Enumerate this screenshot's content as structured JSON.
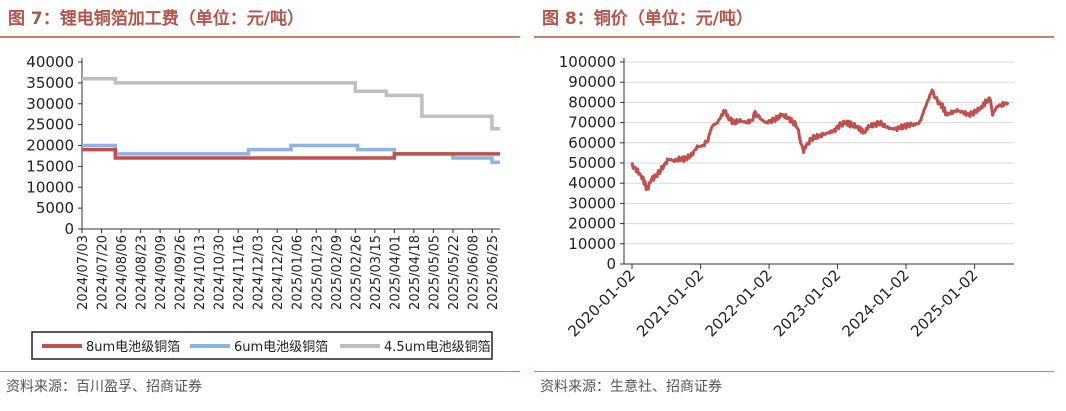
{
  "figures": [
    {
      "title": "图 7：锂电铜箔加工费（单位：元/吨）",
      "source": "资料来源：百川盈孚、招商证券"
    },
    {
      "title": "图 8：铜价（单位：元/吨）",
      "source": "资料来源：生意社、招商证券"
    }
  ],
  "colors": {
    "red": "#c0504d",
    "blue": "#8db4e2",
    "gray": "#bfbfbf",
    "accent": "#b3554b"
  },
  "chart_data": [
    {
      "type": "line",
      "title": "锂电铜箔加工费（单位：元/吨）",
      "categories": [
        "2024/07/03",
        "2024/07/20",
        "2024/08/06",
        "2024/08/23",
        "2024/09/09",
        "2024/09/26",
        "2024/10/13",
        "2024/10/30",
        "2024/11/16",
        "2024/12/03",
        "2024/12/20",
        "2025/01/06",
        "2025/01/23",
        "2025/02/09",
        "2025/02/26",
        "2025/03/15",
        "2025/04/01",
        "2025/04/18",
        "2025/05/05",
        "2025/05/22",
        "2025/06/08",
        "2025/06/25"
      ],
      "ylim": [
        0,
        40000
      ],
      "yticks": [
        "40000",
        "35000",
        "30000",
        "25000",
        "20000",
        "15000",
        "10000",
        "5000",
        "0"
      ],
      "legend_position": "bottom",
      "series": [
        {
          "name": "8um电池级铜箔",
          "color": "#c0504d",
          "x": [
            "2024/07/03",
            "2024/07/20",
            "2024/08/01",
            "2024/11/25",
            "2025/04/01",
            "2025/05/10",
            "2025/07/02"
          ],
          "y": [
            19000,
            19000,
            17000,
            17000,
            18000,
            18000,
            18000
          ]
        },
        {
          "name": "6um电池级铜箔",
          "color": "#8db4e2",
          "x": [
            "2024/07/03",
            "2024/08/01",
            "2024/11/25",
            "2025/01/01",
            "2025/02/28",
            "2025/04/01",
            "2025/05/22",
            "2025/06/25",
            "2025/07/02"
          ],
          "y": [
            20000,
            18000,
            19000,
            20000,
            19000,
            18000,
            17000,
            16000,
            16000
          ]
        },
        {
          "name": "4.5um电池级铜箔",
          "color": "#bfbfbf",
          "x": [
            "2024/07/03",
            "2024/08/01",
            "2025/02/26",
            "2025/03/25",
            "2025/04/25",
            "2025/06/25",
            "2025/07/02"
          ],
          "y": [
            36000,
            35000,
            33000,
            32000,
            27000,
            24000,
            24000
          ]
        }
      ]
    },
    {
      "type": "line",
      "title": "铜价（单位：元/吨）",
      "categories": [
        "2020-01-02",
        "2021-01-02",
        "2022-01-02",
        "2023-01-02",
        "2024-01-02",
        "2025-01-02"
      ],
      "ylim": [
        0,
        100000
      ],
      "yticks": [
        "100000",
        "90000",
        "80000",
        "70000",
        "60000",
        "50000",
        "40000",
        "30000",
        "20000",
        "10000",
        "0"
      ],
      "series": [
        {
          "name": "",
          "color": "#c0504d",
          "x": [
            "2020-01-02",
            "2020-02-01",
            "2020-03-01",
            "2020-03-23",
            "2020-04-15",
            "2020-05-15",
            "2020-06-15",
            "2020-07-15",
            "2020-08-15",
            "2020-09-15",
            "2020-10-15",
            "2020-11-15",
            "2020-12-15",
            "2021-01-15",
            "2021-02-15",
            "2021-03-01",
            "2021-04-01",
            "2021-05-10",
            "2021-06-01",
            "2021-07-01",
            "2021-08-01",
            "2021-09-01",
            "2021-10-01",
            "2021-10-20",
            "2021-11-15",
            "2021-12-15",
            "2022-01-15",
            "2022-02-15",
            "2022-03-08",
            "2022-04-01",
            "2022-05-01",
            "2022-06-01",
            "2022-06-20",
            "2022-07-05",
            "2022-07-15",
            "2022-08-15",
            "2022-09-15",
            "2022-10-15",
            "2022-11-15",
            "2022-12-15",
            "2023-01-15",
            "2023-02-15",
            "2023-03-15",
            "2023-04-15",
            "2023-05-25",
            "2023-06-15",
            "2023-07-15",
            "2023-08-15",
            "2023-09-15",
            "2023-10-15",
            "2023-11-15",
            "2023-12-15",
            "2024-01-15",
            "2024-02-15",
            "2024-03-15",
            "2024-04-15",
            "2024-05-20",
            "2024-06-15",
            "2024-07-15",
            "2024-08-05",
            "2024-09-01",
            "2024-10-01",
            "2024-11-01",
            "2024-12-01",
            "2025-01-01",
            "2025-02-01",
            "2025-03-01",
            "2025-03-26",
            "2025-04-08",
            "2025-05-01",
            "2025-06-01",
            "2025-06-30"
          ],
          "y": [
            49000,
            46000,
            42000,
            37000,
            42000,
            44000,
            48000,
            52000,
            51000,
            52000,
            52000,
            54000,
            58000,
            58500,
            62000,
            68000,
            70000,
            76000,
            72000,
            70000,
            71000,
            70000,
            71000,
            75000,
            72000,
            70000,
            71000,
            72000,
            74000,
            73000,
            71000,
            68000,
            60000,
            56000,
            58000,
            62000,
            63000,
            64000,
            65000,
            66000,
            69000,
            70000,
            69000,
            68000,
            65000,
            68000,
            69000,
            70000,
            68000,
            67000,
            67000,
            68000,
            69000,
            69000,
            70000,
            78000,
            86000,
            81000,
            78000,
            74000,
            75000,
            76000,
            75000,
            74000,
            75000,
            77000,
            80000,
            82000,
            74000,
            78000,
            79000,
            80000
          ]
        }
      ]
    }
  ]
}
